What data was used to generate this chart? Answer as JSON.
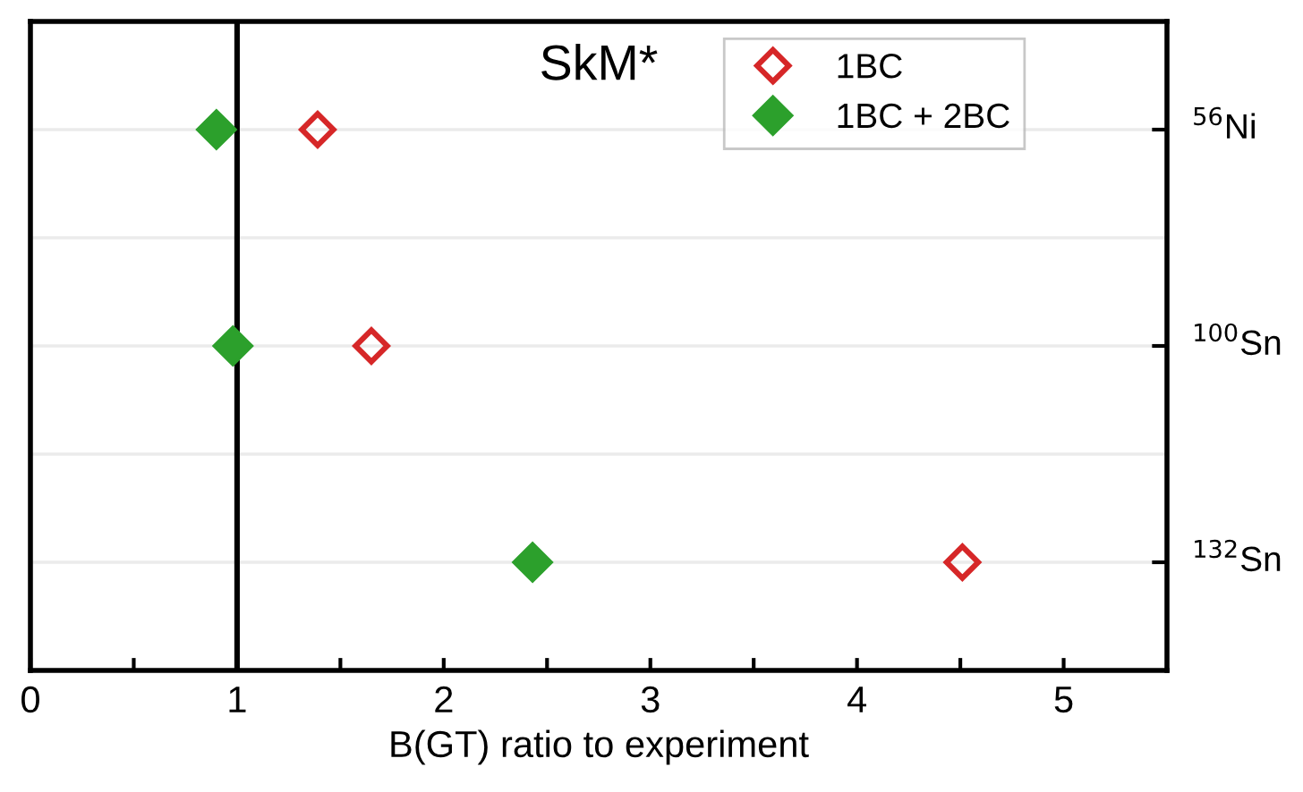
{
  "chart_data": {
    "type": "scatter",
    "orientation": "horizontal",
    "title": "SkM*",
    "xlabel": "B(GT) ratio to experiment",
    "categories": [
      "$^{56}$Ni",
      "$^{100}$Sn",
      "$^{132}$Sn"
    ],
    "series": [
      {
        "name": "1BC",
        "color": "#d62728",
        "marker": "diamond",
        "values": [
          1.39,
          1.65,
          4.51
        ]
      },
      {
        "name": "1BC + 2BC",
        "color": "#2ca02c",
        "marker": "diamond",
        "values": [
          0.9,
          0.98,
          2.43
        ]
      }
    ],
    "xlim": [
      0,
      5.5
    ],
    "xticks": [
      0,
      {
        "value": 0.5,
        "label": null
      },
      1,
      {
        "value": 1.5,
        "label": null
      },
      2,
      {
        "value": 2.5,
        "label": null
      },
      3,
      {
        "value": 3.5,
        "label": null
      },
      4,
      {
        "value": 4.5,
        "label": null
      },
      5
    ],
    "ref_lines": [
      {
        "axis": "x",
        "value": 1,
        "color": "#000000",
        "line_style": "solid"
      }
    ],
    "grid": "y",
    "legend": "top right"
  }
}
